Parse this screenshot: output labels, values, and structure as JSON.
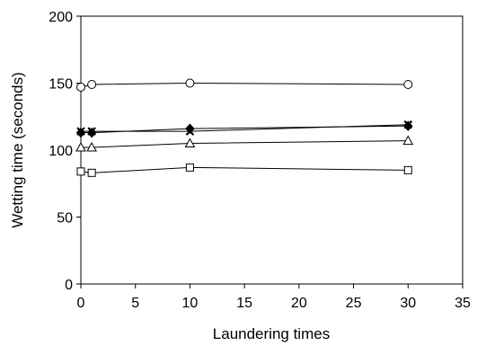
{
  "chart_data": {
    "type": "line",
    "title": "",
    "xlabel": "Laundering times",
    "ylabel": "Wetting time (seconds)",
    "xlim": [
      0,
      35
    ],
    "ylim": [
      0,
      200
    ],
    "xticks": [
      0,
      5,
      10,
      15,
      20,
      25,
      30,
      35
    ],
    "yticks": [
      0,
      50,
      100,
      150,
      200
    ],
    "grid": false,
    "legend": "none",
    "series": [
      {
        "marker": "circle-open",
        "x": [
          0,
          1,
          10,
          30
        ],
        "y": [
          147,
          149,
          150,
          149
        ]
      },
      {
        "marker": "cross",
        "x": [
          0,
          1,
          10,
          30
        ],
        "y": [
          114,
          114,
          114,
          119
        ]
      },
      {
        "marker": "diamond-filled",
        "x": [
          0,
          1,
          10,
          30
        ],
        "y": [
          113,
          113,
          116,
          118
        ]
      },
      {
        "marker": "triangle-open",
        "x": [
          0,
          1,
          10,
          30
        ],
        "y": [
          102,
          102,
          105,
          107
        ]
      },
      {
        "marker": "square-open",
        "x": [
          0,
          1,
          10,
          30
        ],
        "y": [
          84,
          83,
          87,
          85
        ]
      }
    ],
    "colors": {
      "line": "#000000",
      "frame": "#000000",
      "background": "#ffffff"
    }
  }
}
